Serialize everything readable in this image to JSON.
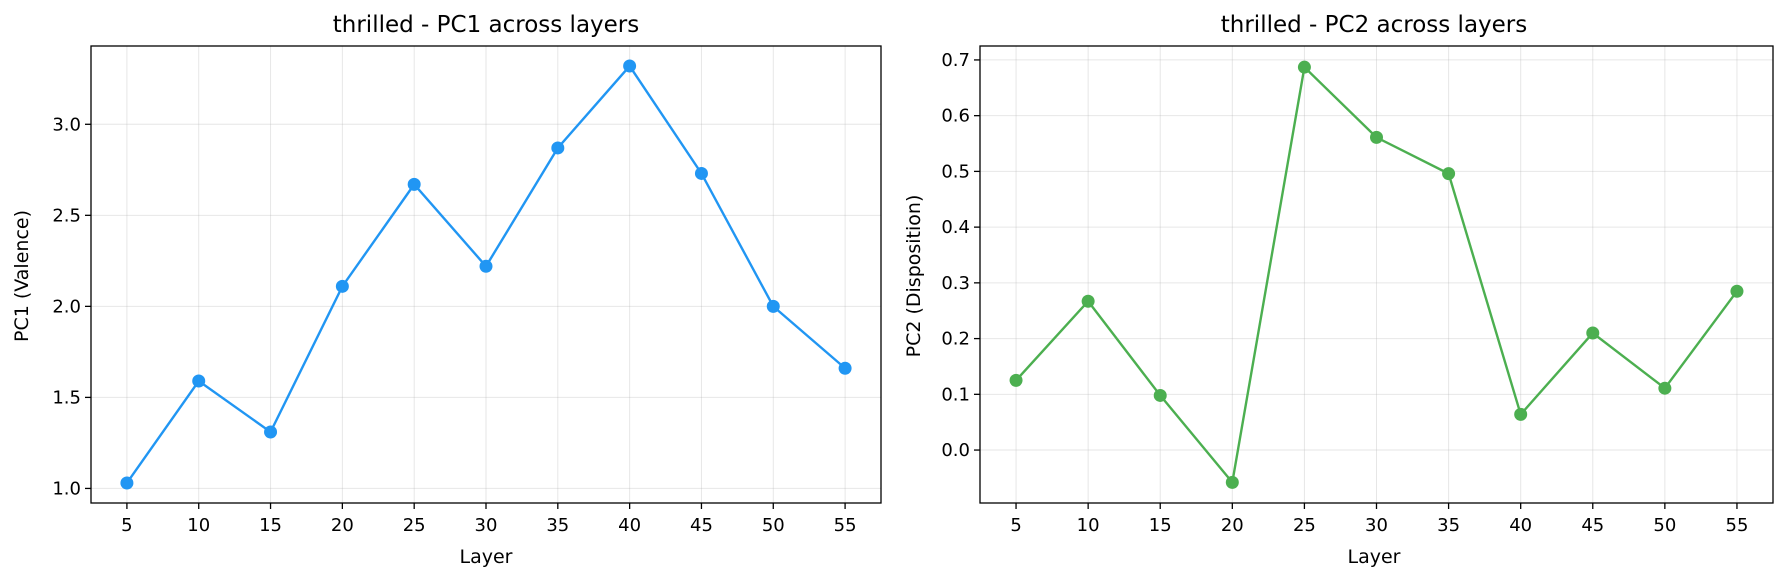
{
  "chart_data": [
    {
      "type": "line",
      "title": "thrilled - PC1 across layers",
      "xlabel": "Layer",
      "ylabel": "PC1 (Valence)",
      "x": [
        5,
        10,
        15,
        20,
        25,
        30,
        35,
        40,
        45,
        50,
        55
      ],
      "xticks": [
        5,
        10,
        15,
        20,
        25,
        30,
        35,
        40,
        45,
        50,
        55
      ],
      "yticks": [
        1.0,
        1.5,
        2.0,
        2.5,
        3.0
      ],
      "ytick_labels": [
        "1.0",
        "1.5",
        "2.0",
        "2.5",
        "3.0"
      ],
      "xlim": [
        2.5,
        57.5
      ],
      "ylim": [
        0.92,
        3.43
      ],
      "grid": true,
      "color": "#2196F3",
      "series": [
        {
          "values": [
            1.03,
            1.59,
            1.31,
            2.11,
            2.67,
            2.22,
            2.87,
            3.32,
            2.73,
            2.0,
            1.66
          ]
        }
      ]
    },
    {
      "type": "line",
      "title": "thrilled - PC2 across layers",
      "xlabel": "Layer",
      "ylabel": "PC2 (Disposition)",
      "x": [
        5,
        10,
        15,
        20,
        25,
        30,
        35,
        40,
        45,
        50,
        55
      ],
      "xticks": [
        5,
        10,
        15,
        20,
        25,
        30,
        35,
        40,
        45,
        50,
        55
      ],
      "yticks": [
        0.0,
        0.1,
        0.2,
        0.3,
        0.4,
        0.5,
        0.6,
        0.7
      ],
      "ytick_labels": [
        "0.0",
        "0.1",
        "0.2",
        "0.3",
        "0.4",
        "0.5",
        "0.6",
        "0.7"
      ],
      "xlim": [
        2.5,
        57.5
      ],
      "ylim": [
        -0.095,
        0.725
      ],
      "grid": true,
      "color": "#4CAF50",
      "series": [
        {
          "values": [
            0.125,
            0.267,
            0.098,
            -0.058,
            0.687,
            0.561,
            0.496,
            0.064,
            0.21,
            0.111,
            0.285
          ]
        }
      ]
    }
  ]
}
